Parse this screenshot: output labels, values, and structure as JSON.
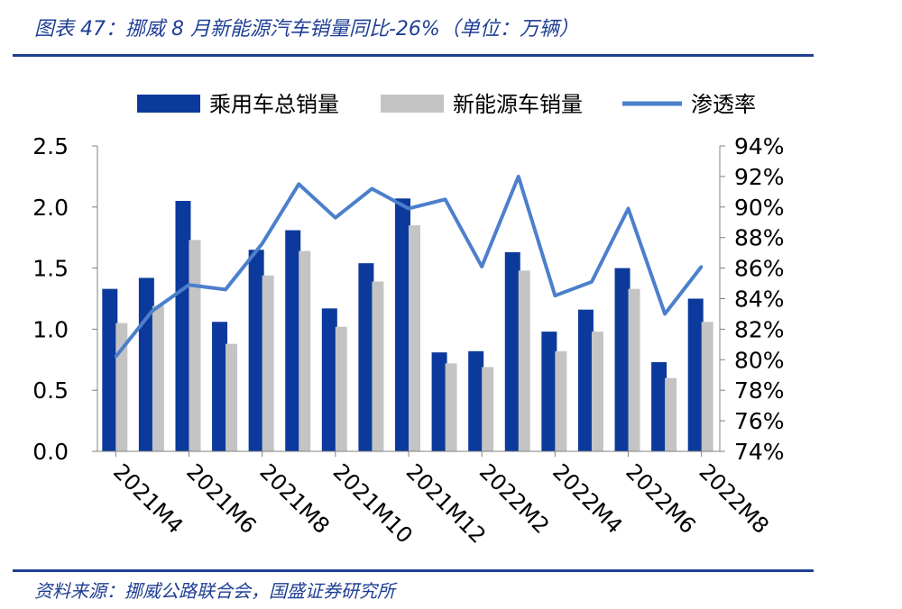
{
  "title": "图表 47：挪威 8 月新能源汽车销量同比-26%（单位：万辆）",
  "source": "资料来源：挪威公路联合会，国盛证券研究所",
  "colors": {
    "primary_bar": "#0c3a9c",
    "secondary_bar": "#c4c4c4",
    "line": "#4c7fcc",
    "rule": "#1f3f94"
  },
  "chart_data": {
    "type": "bar",
    "categories": [
      "2021M4",
      "2021M5",
      "2021M6",
      "2021M7",
      "2021M8",
      "2021M9",
      "2021M10",
      "2021M11",
      "2021M12",
      "2022M1",
      "2022M2",
      "2022M3",
      "2022M4",
      "2022M5",
      "2022M6",
      "2022M7",
      "2022M8"
    ],
    "x_tick_labels": [
      "2021M4",
      "2021M6",
      "2021M8",
      "2021M10",
      "2021M12",
      "2022M2",
      "2022M4",
      "2022M6",
      "2022M8"
    ],
    "series": [
      {
        "name": "乘用车总销量",
        "type": "bar",
        "axis": "left",
        "values": [
          1.33,
          1.42,
          2.05,
          1.06,
          1.65,
          1.81,
          1.17,
          1.54,
          2.07,
          0.81,
          0.82,
          1.63,
          0.98,
          1.16,
          1.5,
          0.73,
          1.25
        ]
      },
      {
        "name": "新能源车销量",
        "type": "bar",
        "axis": "left",
        "values": [
          1.05,
          1.19,
          1.73,
          0.88,
          1.44,
          1.64,
          1.02,
          1.39,
          1.85,
          0.72,
          0.69,
          1.48,
          0.82,
          0.98,
          1.33,
          0.6,
          1.06
        ]
      },
      {
        "name": "渗透率",
        "type": "line",
        "axis": "right",
        "values": [
          80.2,
          83.2,
          84.9,
          84.6,
          87.6,
          91.5,
          89.3,
          91.2,
          89.9,
          90.5,
          86.1,
          92.0,
          84.2,
          85.1,
          89.9,
          83.0,
          86.1
        ]
      }
    ],
    "y_left": {
      "ylim": [
        0,
        2.5
      ],
      "ticks": [
        "0.0",
        "0.5",
        "1.0",
        "1.5",
        "2.0",
        "2.5"
      ]
    },
    "y_right": {
      "ylim": [
        74,
        94
      ],
      "unit": "%",
      "ticks": [
        "74%",
        "76%",
        "78%",
        "80%",
        "82%",
        "84%",
        "86%",
        "88%",
        "90%",
        "92%",
        "94%"
      ]
    },
    "legend_position": "top",
    "grid": false
  }
}
